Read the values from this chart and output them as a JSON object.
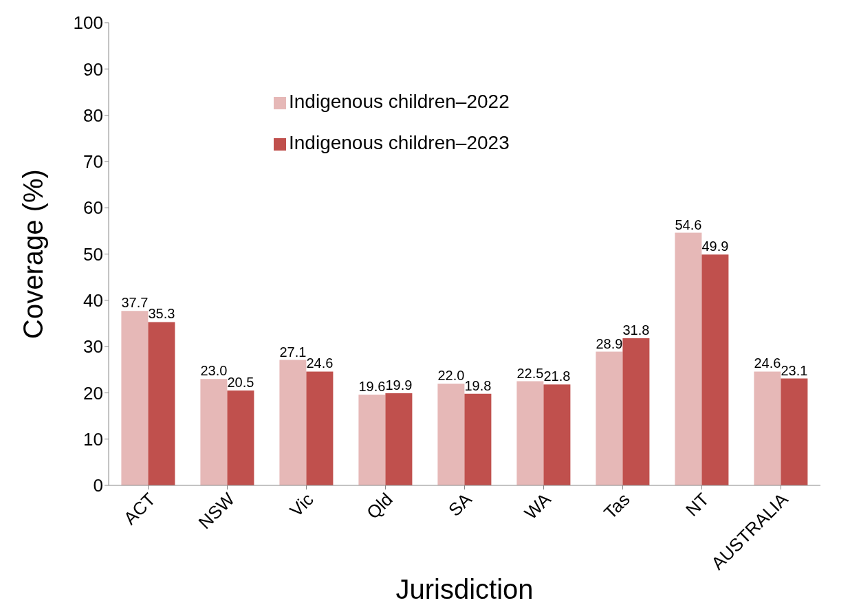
{
  "chart_data": {
    "type": "bar",
    "xlabel": "Jurisdiction",
    "ylabel": "Coverage (%)",
    "categories": [
      "ACT",
      "NSW",
      "Vic",
      "Qld",
      "SA",
      "WA",
      "Tas",
      "NT",
      "AUSTRALIA"
    ],
    "series": [
      {
        "name": "Indigenous children–2022",
        "color": "#e6b8b7",
        "values": [
          37.7,
          23.0,
          27.1,
          19.6,
          22.0,
          22.5,
          28.9,
          54.6,
          24.6
        ],
        "value_labels": [
          "37.7",
          "23.0",
          "27.1",
          "19.6",
          "22.0",
          "22.5",
          "28.9",
          "54.6",
          "24.6"
        ]
      },
      {
        "name": "Indigenous children–2023",
        "color": "#c0504d",
        "values": [
          35.3,
          20.5,
          24.6,
          19.9,
          19.8,
          21.8,
          31.8,
          49.9,
          23.1
        ],
        "value_labels": [
          "35.3",
          "20.5",
          "24.6",
          "19.9",
          "19.8",
          "21.8",
          "31.8",
          "49.9",
          "23.1"
        ]
      }
    ],
    "ylim": [
      0,
      100
    ],
    "yticks": [
      0,
      10,
      20,
      30,
      40,
      50,
      60,
      70,
      80,
      90,
      100
    ],
    "grid": false,
    "legend": "top"
  }
}
